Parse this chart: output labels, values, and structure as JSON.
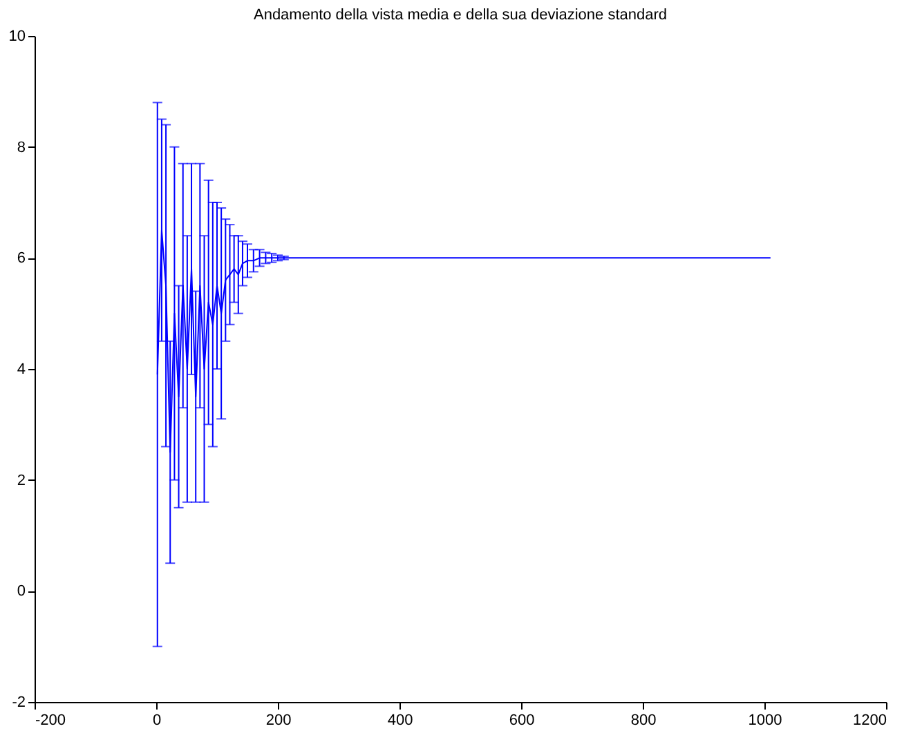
{
  "chart_data": {
    "type": "line",
    "title": "Andamento della vista media e della sua deviazione standard",
    "x": [
      2,
      9,
      16,
      23,
      30,
      37,
      44,
      51,
      58,
      65,
      72,
      79,
      86,
      93,
      100,
      107,
      114,
      121,
      128,
      135,
      142,
      150,
      160,
      170,
      180,
      190,
      200,
      210,
      220,
      1010
    ],
    "series": [
      {
        "color": "#0000ff",
        "values": [
          3.9,
          6.5,
          5.5,
          2.5,
          5.0,
          3.5,
          5.5,
          4.0,
          5.8,
          3.5,
          5.5,
          4.0,
          5.2,
          4.8,
          5.5,
          5.0,
          5.6,
          5.7,
          5.8,
          5.7,
          5.9,
          5.95,
          5.95,
          6.0,
          6.0,
          6.0,
          6.0,
          6.0,
          6.0,
          6.0
        ],
        "errors": [
          4.9,
          2.0,
          2.9,
          2.0,
          3.0,
          2.0,
          2.2,
          2.4,
          1.9,
          1.9,
          2.2,
          2.4,
          2.2,
          2.2,
          1.5,
          1.9,
          1.1,
          0.9,
          0.6,
          0.7,
          0.4,
          0.3,
          0.2,
          0.15,
          0.1,
          0.08,
          0.05,
          0.03,
          null,
          null
        ]
      }
    ],
    "xlim": [
      -200,
      1200
    ],
    "xticks": [
      -200,
      0,
      200,
      400,
      600,
      800,
      1000,
      1200
    ],
    "ylim": [
      -2,
      10
    ],
    "yticks": [
      -2,
      0,
      2,
      4,
      6,
      8,
      10
    ],
    "grid": false
  }
}
